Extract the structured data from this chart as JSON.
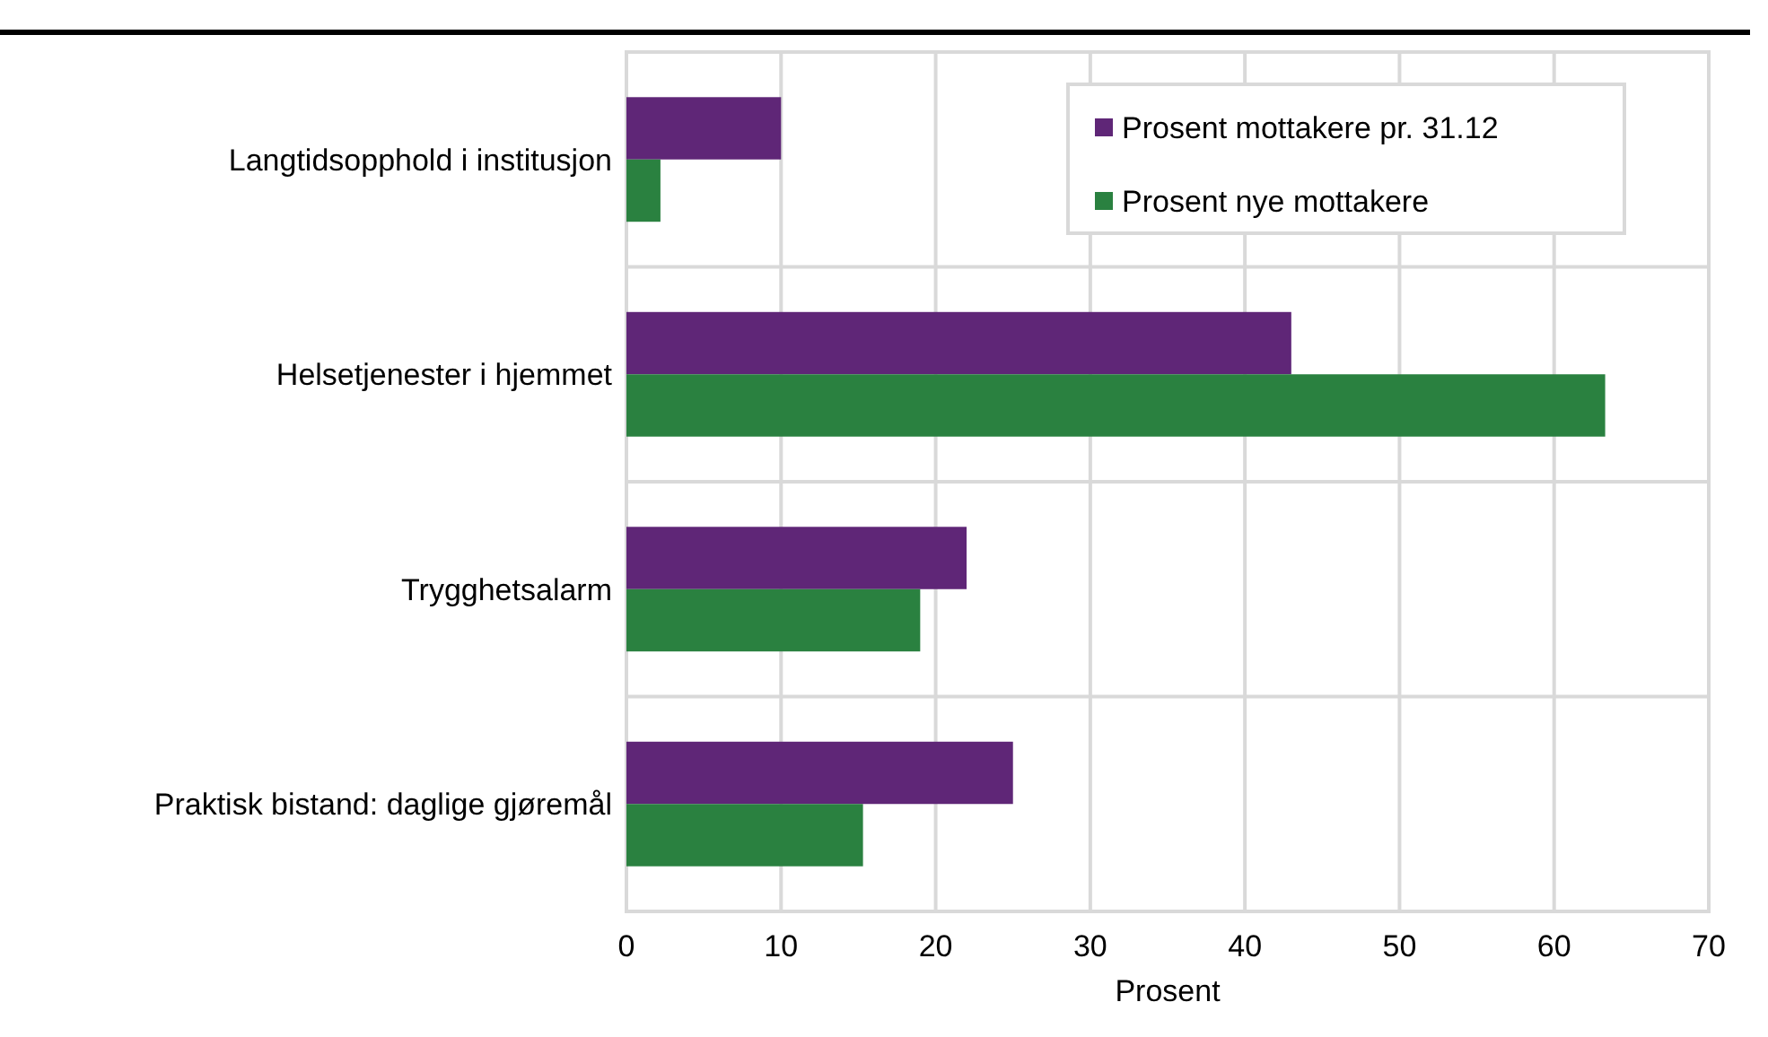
{
  "chart_data": {
    "type": "bar",
    "orientation": "horizontal",
    "xlabel": "Prosent",
    "categories": [
      "Langtidsopphold i institusjon",
      "Helsetjenester i hjemmet",
      "Trygghetsalarm",
      "Praktisk bistand: daglige gjøremål"
    ],
    "series": [
      {
        "name": "Prosent mottakere pr. 31.12",
        "color": "#5f2677",
        "values": [
          10,
          43,
          22,
          25
        ]
      },
      {
        "name": "Prosent nye mottakere",
        "color": "#2a8140",
        "values": [
          2.2,
          63.3,
          19,
          15.3
        ]
      }
    ],
    "xlim": [
      0,
      70
    ],
    "xticks": [
      0,
      10,
      20,
      30,
      40,
      50,
      60,
      70
    ],
    "grid": true,
    "legend": "top right"
  }
}
